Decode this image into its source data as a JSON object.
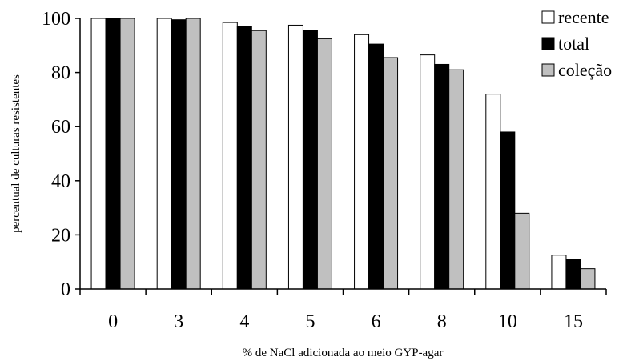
{
  "chart_data": {
    "type": "bar",
    "categories": [
      "0",
      "3",
      "4",
      "5",
      "6",
      "8",
      "10",
      "15"
    ],
    "series": [
      {
        "name": "recente",
        "color": "#ffffff",
        "values": [
          100,
          100,
          98.5,
          97.5,
          94,
          86.5,
          72,
          12.5
        ]
      },
      {
        "name": "total",
        "color": "#000000",
        "values": [
          100,
          99.5,
          97,
          95.5,
          90.5,
          83,
          58,
          11
        ]
      },
      {
        "name": "coleção",
        "color": "#c0c0c0",
        "values": [
          100,
          100,
          95.5,
          92.5,
          85.5,
          81,
          28,
          7.5
        ]
      }
    ],
    "xlabel": "% de NaCl adicionada ao meio GYP-agar",
    "ylabel": "percentual de culturas resistentes",
    "ylim": [
      0,
      100
    ],
    "yticks": [
      0,
      20,
      40,
      60,
      80,
      100
    ],
    "grid": false,
    "legend_position": "top-right"
  }
}
